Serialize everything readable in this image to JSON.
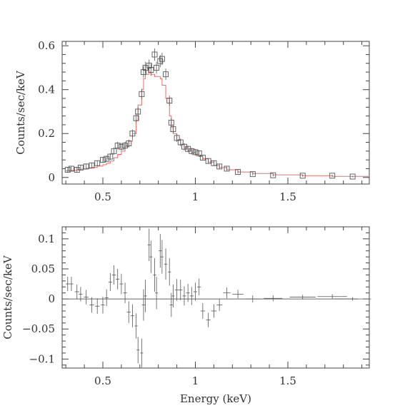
{
  "chart_data": [
    {
      "type": "scatter",
      "title": "",
      "xlabel": "",
      "ylabel": "Counts/sec/keV",
      "xlim": [
        0.28,
        1.94
      ],
      "ylim": [
        -0.03,
        0.62
      ],
      "xticks": [
        0.5,
        1,
        1.5
      ],
      "xtick_labels": [
        "0.5",
        "1",
        "1.5"
      ],
      "yticks": [
        0,
        0.2,
        0.4,
        0.6
      ],
      "ytick_labels": [
        "0",
        "0.2",
        "0.4",
        "0.6"
      ],
      "grid": false,
      "series": [
        {
          "kind": "data-points-with-error-bars",
          "marker": "open-square",
          "color": "#555555",
          "x": [
            0.31,
            0.33,
            0.36,
            0.38,
            0.41,
            0.44,
            0.47,
            0.5,
            0.52,
            0.54,
            0.56,
            0.58,
            0.6,
            0.62,
            0.64,
            0.66,
            0.68,
            0.69,
            0.71,
            0.72,
            0.73,
            0.75,
            0.76,
            0.78,
            0.79,
            0.81,
            0.82,
            0.84,
            0.86,
            0.87,
            0.88,
            0.9,
            0.92,
            0.94,
            0.96,
            0.98,
            1.0,
            1.02,
            1.04,
            1.07,
            1.1,
            1.13,
            1.17,
            1.23,
            1.31,
            1.42,
            1.58,
            1.74,
            1.85
          ],
          "y": [
            0.035,
            0.04,
            0.035,
            0.045,
            0.05,
            0.055,
            0.065,
            0.08,
            0.085,
            0.095,
            0.12,
            0.145,
            0.14,
            0.145,
            0.155,
            0.2,
            0.27,
            0.3,
            0.38,
            0.48,
            0.5,
            0.51,
            0.49,
            0.56,
            0.5,
            0.53,
            0.54,
            0.47,
            0.35,
            0.25,
            0.22,
            0.18,
            0.16,
            0.14,
            0.13,
            0.12,
            0.115,
            0.11,
            0.09,
            0.075,
            0.065,
            0.05,
            0.04,
            0.025,
            0.015,
            0.01,
            0.008,
            0.008,
            0.004
          ],
          "yerr": [
            0.012,
            0.012,
            0.012,
            0.012,
            0.012,
            0.013,
            0.013,
            0.014,
            0.014,
            0.015,
            0.016,
            0.017,
            0.017,
            0.017,
            0.018,
            0.019,
            0.021,
            0.022,
            0.024,
            0.026,
            0.027,
            0.027,
            0.027,
            0.028,
            0.027,
            0.028,
            0.028,
            0.026,
            0.023,
            0.02,
            0.019,
            0.018,
            0.017,
            0.016,
            0.015,
            0.015,
            0.015,
            0.014,
            0.013,
            0.012,
            0.011,
            0.01,
            0.009,
            0.007,
            0.006,
            0.005,
            0.004,
            0.004,
            0.003
          ]
        },
        {
          "kind": "model-step",
          "color": "#ee6a6a",
          "x": [
            0.3,
            0.33,
            0.36,
            0.38,
            0.41,
            0.44,
            0.47,
            0.5,
            0.52,
            0.54,
            0.56,
            0.58,
            0.6,
            0.62,
            0.64,
            0.66,
            0.68,
            0.69,
            0.71,
            0.72,
            0.73,
            0.75,
            0.76,
            0.78,
            0.79,
            0.81,
            0.82,
            0.84,
            0.86,
            0.87,
            0.88,
            0.9,
            0.92,
            0.94,
            0.96,
            0.98,
            1.0,
            1.02,
            1.04,
            1.07,
            1.1,
            1.13,
            1.17,
            1.23,
            1.31,
            1.42,
            1.58,
            1.74,
            1.94
          ],
          "y": [
            0.03,
            0.032,
            0.035,
            0.038,
            0.042,
            0.046,
            0.052,
            0.058,
            0.065,
            0.075,
            0.09,
            0.105,
            0.12,
            0.14,
            0.165,
            0.2,
            0.26,
            0.33,
            0.4,
            0.45,
            0.47,
            0.48,
            0.47,
            0.46,
            0.46,
            0.45,
            0.42,
            0.36,
            0.28,
            0.23,
            0.2,
            0.17,
            0.15,
            0.135,
            0.125,
            0.115,
            0.105,
            0.095,
            0.085,
            0.07,
            0.055,
            0.045,
            0.035,
            0.025,
            0.018,
            0.012,
            0.008,
            0.005,
            0.004
          ]
        }
      ]
    },
    {
      "type": "scatter",
      "title": "",
      "xlabel": "Energy (keV)",
      "ylabel": "Counts/sec/keV",
      "xlim": [
        0.28,
        1.94
      ],
      "ylim": [
        -0.115,
        0.12
      ],
      "xticks": [
        0.5,
        1,
        1.5
      ],
      "xtick_labels": [
        "0.5",
        "1",
        "1.5"
      ],
      "yticks": [
        -0.1,
        -0.05,
        0,
        0.05,
        0.1
      ],
      "ytick_labels": [
        "−0.1",
        "−0.05",
        "0",
        "0.05",
        "0.1"
      ],
      "grid": false,
      "zero_line": true,
      "series": [
        {
          "kind": "residuals-with-error-bars",
          "color": "#555555",
          "x": [
            0.31,
            0.33,
            0.36,
            0.38,
            0.41,
            0.44,
            0.47,
            0.5,
            0.52,
            0.54,
            0.56,
            0.58,
            0.6,
            0.62,
            0.64,
            0.66,
            0.68,
            0.69,
            0.71,
            0.72,
            0.73,
            0.75,
            0.76,
            0.78,
            0.79,
            0.81,
            0.82,
            0.84,
            0.86,
            0.87,
            0.88,
            0.9,
            0.92,
            0.94,
            0.96,
            0.98,
            1.0,
            1.02,
            1.04,
            1.07,
            1.1,
            1.13,
            1.17,
            1.23,
            1.31,
            1.42,
            1.58,
            1.74,
            1.85
          ],
          "y": [
            0.025,
            0.025,
            0.012,
            0.008,
            0.003,
            -0.01,
            -0.012,
            -0.01,
            0.002,
            0.028,
            0.04,
            0.033,
            0.025,
            0.01,
            -0.022,
            -0.028,
            -0.045,
            -0.085,
            -0.09,
            -0.01,
            0.005,
            0.09,
            0.07,
            0.04,
            0.01,
            0.08,
            0.07,
            0.058,
            0.045,
            -0.01,
            0.005,
            0.015,
            0.015,
            0.005,
            0.01,
            0.005,
            0.012,
            0.02,
            -0.02,
            -0.035,
            -0.02,
            -0.01,
            0.01,
            0.008,
            0.0,
            0.001,
            0.003,
            0.004,
            0.0
          ],
          "xerr": [
            0.01,
            0.01,
            0.012,
            0.01,
            0.012,
            0.012,
            0.012,
            0.01,
            0.01,
            0.01,
            0.01,
            0.01,
            0.01,
            0.01,
            0.01,
            0.01,
            0.008,
            0.008,
            0.008,
            0.008,
            0.008,
            0.008,
            0.008,
            0.008,
            0.008,
            0.008,
            0.008,
            0.008,
            0.008,
            0.008,
            0.008,
            0.01,
            0.01,
            0.01,
            0.01,
            0.01,
            0.01,
            0.01,
            0.012,
            0.012,
            0.015,
            0.015,
            0.02,
            0.03,
            0.04,
            0.05,
            0.07,
            0.08,
            0.1
          ],
          "yerr": [
            0.012,
            0.012,
            0.012,
            0.012,
            0.012,
            0.013,
            0.013,
            0.014,
            0.014,
            0.015,
            0.016,
            0.017,
            0.017,
            0.017,
            0.018,
            0.019,
            0.021,
            0.022,
            0.024,
            0.026,
            0.027,
            0.027,
            0.027,
            0.028,
            0.027,
            0.028,
            0.028,
            0.026,
            0.023,
            0.02,
            0.019,
            0.018,
            0.017,
            0.016,
            0.015,
            0.015,
            0.015,
            0.014,
            0.013,
            0.012,
            0.011,
            0.01,
            0.009,
            0.007,
            0.006,
            0.005,
            0.004,
            0.004,
            0.003
          ]
        }
      ]
    }
  ]
}
